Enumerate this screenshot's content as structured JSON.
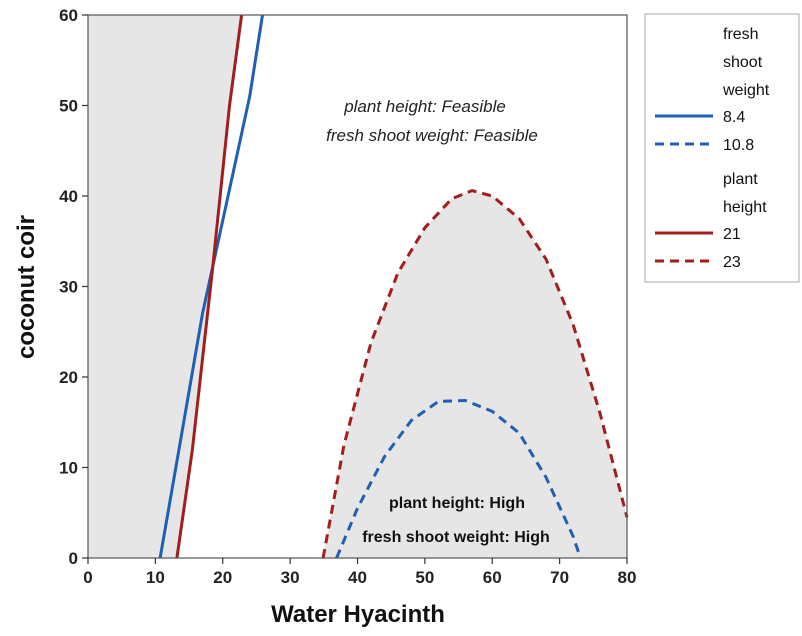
{
  "chart_data": {
    "type": "line",
    "title": "",
    "xlabel": "Water Hyacinth",
    "ylabel": "coconut coir",
    "xlim": [
      0,
      80
    ],
    "ylim": [
      0,
      60
    ],
    "xticks": [
      0,
      10,
      20,
      30,
      40,
      50,
      60,
      70,
      80
    ],
    "yticks": [
      0,
      10,
      20,
      30,
      40,
      50,
      60
    ],
    "grid": false,
    "legend_placement": "right",
    "shaded_color": "#e6e6e6",
    "regions": {
      "feasible_label_1": "plant height: Feasible",
      "feasible_label_2": "fresh shoot weight: Feasible",
      "high_label_1": "plant height: High",
      "high_label_2": "fresh shoot weight: High"
    },
    "legend": {
      "group1_title_lines": [
        "fresh",
        "shoot",
        "weight"
      ],
      "group1_entries": [
        {
          "label": "8.4",
          "color": "#1f5fb4",
          "dash": "solid"
        },
        {
          "label": "10.8",
          "color": "#1f5fb4",
          "dash": "dashed"
        }
      ],
      "group2_title_lines": [
        "plant",
        "height"
      ],
      "group2_entries": [
        {
          "label": "21",
          "color": "#a31d1d",
          "dash": "solid"
        },
        {
          "label": "23",
          "color": "#a31d1d",
          "dash": "dashed"
        }
      ]
    },
    "series": [
      {
        "name": "8.4",
        "group": "fresh shoot weight",
        "color": "#1f5fb4",
        "dash": "solid",
        "x": [
          10.7,
          13.5,
          17.0,
          20.5,
          24.0,
          25.9
        ],
        "y": [
          0,
          12,
          27,
          39,
          51,
          60
        ]
      },
      {
        "name": "21",
        "group": "plant height",
        "color": "#a31d1d",
        "dash": "solid",
        "x": [
          13.2,
          15.5,
          18.5,
          21.0,
          22.8
        ],
        "y": [
          0,
          12,
          32,
          50,
          60
        ]
      },
      {
        "name": "10.8",
        "group": "fresh shoot weight",
        "color": "#1f5fb4",
        "dash": "dashed",
        "x": [
          36.9,
          40.0,
          44.0,
          48.0,
          52.0,
          56.0,
          60.0,
          64.0,
          68.0,
          72.0,
          73.1
        ],
        "y": [
          0,
          5.5,
          11.2,
          15.2,
          17.3,
          17.4,
          16.2,
          13.8,
          8.9,
          2.4,
          0
        ]
      },
      {
        "name": "23",
        "group": "plant height",
        "color": "#a31d1d",
        "dash": "dashed",
        "x": [
          34.9,
          38.0,
          42.0,
          46.0,
          50.0,
          54.0,
          57.0,
          60.0,
          64.0,
          68.0,
          72.0,
          76.0,
          80.0
        ],
        "y": [
          0,
          12.5,
          23.8,
          31.5,
          36.5,
          39.7,
          40.6,
          40.0,
          37.5,
          33.0,
          25.8,
          16.0,
          4.5
        ]
      }
    ]
  }
}
